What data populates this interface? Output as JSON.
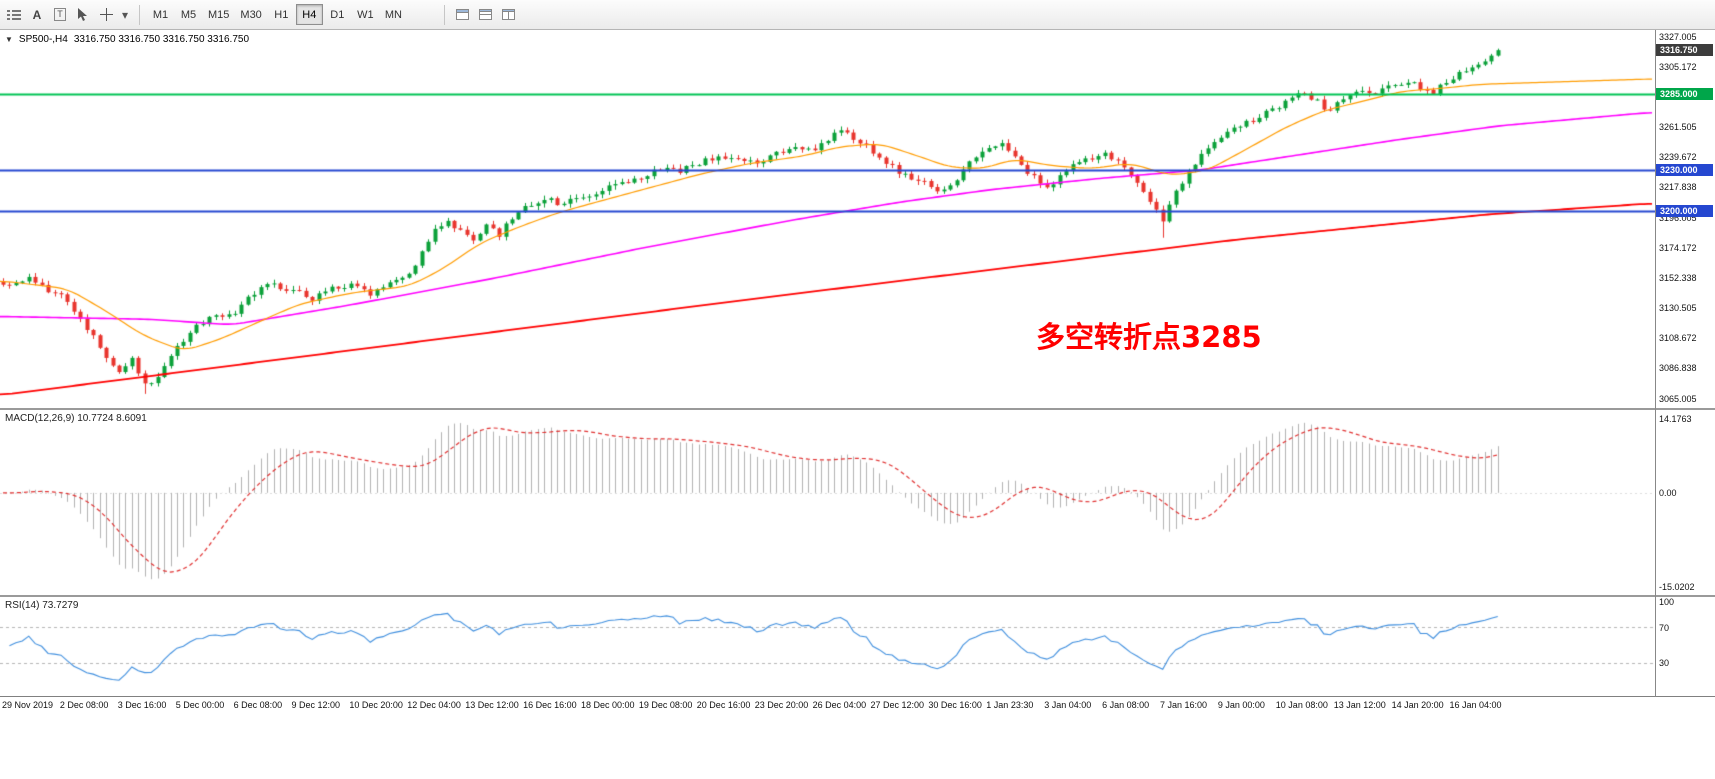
{
  "toolbar": {
    "timeframes": [
      "M1",
      "M5",
      "M15",
      "M30",
      "H1",
      "H4",
      "D1",
      "W1",
      "MN"
    ],
    "active_timeframe": "H4",
    "text_tool_label": "A",
    "frame_tool_label": "T",
    "dropdown_caret": "▾"
  },
  "chart": {
    "symbol_title": "SP500-,H4",
    "ohlc_text": "3316.750 3316.750 3316.750 3316.750",
    "annotation": {
      "text": "多空转折点3285",
      "color": "#ff0000"
    },
    "price_min": 3065.005,
    "price_max": 3327.005,
    "price_axis_ticks": [
      "3327.005",
      "3305.172",
      "3283.338",
      "3261.505",
      "3239.672",
      "3217.838",
      "3196.005",
      "3174.172",
      "3152.338",
      "3130.505",
      "3108.672",
      "3086.838",
      "3065.005"
    ],
    "price_tags": [
      {
        "label": "3316.750",
        "price": 3316.75,
        "bg": "#3c3c3c"
      },
      {
        "label": "3285.000",
        "price": 3285.0,
        "bg": "#00a64a"
      },
      {
        "label": "3230.000",
        "price": 3230.0,
        "bg": "#2547d0"
      },
      {
        "label": "3200.000",
        "price": 3200.0,
        "bg": "#2547d0"
      }
    ],
    "hlines": [
      {
        "price": 3285.0,
        "color": "#00c455",
        "width": 2
      },
      {
        "price": 3230.0,
        "color": "#2547d0",
        "width": 2
      },
      {
        "price": 3200.0,
        "color": "#2547d0",
        "width": 2
      }
    ],
    "colors": {
      "up": "#0ca13a",
      "down": "#e8352e",
      "ma_fast": "#ff9c00",
      "ma_mid": "#ff00ff",
      "ma_slow": "#ff0000"
    }
  },
  "chart_data": {
    "type": "candlestick",
    "symbol": "SP500-",
    "timeframe": "H4",
    "candle_count": 233,
    "ohlc_current": {
      "open": 3316.75,
      "high": 3316.75,
      "low": 3316.75,
      "close": 3316.75
    },
    "close_waypoints": [
      [
        0,
        3147
      ],
      [
        4,
        3152
      ],
      [
        9,
        3138
      ],
      [
        13,
        3116
      ],
      [
        16,
        3096
      ],
      [
        18,
        3083
      ],
      [
        20,
        3094
      ],
      [
        22,
        3074
      ],
      [
        24,
        3081
      ],
      [
        27,
        3103
      ],
      [
        30,
        3117
      ],
      [
        33,
        3124
      ],
      [
        36,
        3127
      ],
      [
        38,
        3140
      ],
      [
        42,
        3147
      ],
      [
        45,
        3143
      ],
      [
        48,
        3137
      ],
      [
        51,
        3144
      ],
      [
        54,
        3146
      ],
      [
        57,
        3140
      ],
      [
        60,
        3147
      ],
      [
        63,
        3154
      ],
      [
        65,
        3170
      ],
      [
        67,
        3186
      ],
      [
        69,
        3194
      ],
      [
        71,
        3186
      ],
      [
        73,
        3180
      ],
      [
        75,
        3189
      ],
      [
        77,
        3183
      ],
      [
        79,
        3196
      ],
      [
        81,
        3204
      ],
      [
        84,
        3209
      ],
      [
        87,
        3205
      ],
      [
        90,
        3211
      ],
      [
        93,
        3216
      ],
      [
        96,
        3221
      ],
      [
        99,
        3225
      ],
      [
        102,
        3231
      ],
      [
        105,
        3229
      ],
      [
        108,
        3235
      ],
      [
        111,
        3240
      ],
      [
        114,
        3237
      ],
      [
        117,
        3236
      ],
      [
        120,
        3242
      ],
      [
        123,
        3247
      ],
      [
        126,
        3245
      ],
      [
        128,
        3252
      ],
      [
        130,
        3259
      ],
      [
        132,
        3254
      ],
      [
        135,
        3243
      ],
      [
        138,
        3232
      ],
      [
        141,
        3224
      ],
      [
        144,
        3219
      ],
      [
        146,
        3214
      ],
      [
        148,
        3224
      ],
      [
        150,
        3237
      ],
      [
        153,
        3247
      ],
      [
        155,
        3251
      ],
      [
        157,
        3241
      ],
      [
        159,
        3228
      ],
      [
        162,
        3217
      ],
      [
        164,
        3226
      ],
      [
        167,
        3236
      ],
      [
        171,
        3241
      ],
      [
        173,
        3236
      ],
      [
        175,
        3227
      ],
      [
        177,
        3215
      ],
      [
        179,
        3203
      ],
      [
        180,
        3192
      ],
      [
        182,
        3214
      ],
      [
        184,
        3229
      ],
      [
        186,
        3243
      ],
      [
        189,
        3254
      ],
      [
        192,
        3262
      ],
      [
        195,
        3269
      ],
      [
        198,
        3275
      ],
      [
        200,
        3281
      ],
      [
        202,
        3286
      ],
      [
        204,
        3279
      ],
      [
        206,
        3271
      ],
      [
        207,
        3277
      ],
      [
        209,
        3284
      ],
      [
        211,
        3289
      ],
      [
        213,
        3286
      ],
      [
        216,
        3291
      ],
      [
        218,
        3295
      ],
      [
        220,
        3290
      ],
      [
        222,
        3287
      ],
      [
        224,
        3293
      ],
      [
        225,
        3296
      ],
      [
        227,
        3302
      ],
      [
        229,
        3308
      ],
      [
        231,
        3313
      ],
      [
        232,
        3316.75
      ]
    ],
    "special_lows": [
      [
        22,
        3068
      ],
      [
        180,
        3181
      ]
    ],
    "ma_fast_waypoints": [
      [
        0,
        3150
      ],
      [
        0.041,
        3144
      ],
      [
        0.064,
        3128
      ],
      [
        0.087,
        3110
      ],
      [
        0.111,
        3099
      ],
      [
        0.134,
        3108
      ],
      [
        0.158,
        3121
      ],
      [
        0.181,
        3133
      ],
      [
        0.212,
        3141
      ],
      [
        0.247,
        3146
      ],
      [
        0.267,
        3158
      ],
      [
        0.29,
        3177
      ],
      [
        0.314,
        3189
      ],
      [
        0.337,
        3199
      ],
      [
        0.361,
        3207
      ],
      [
        0.392,
        3217
      ],
      [
        0.423,
        3227
      ],
      [
        0.454,
        3235
      ],
      [
        0.485,
        3240
      ],
      [
        0.508,
        3247
      ],
      [
        0.532,
        3249
      ],
      [
        0.555,
        3240
      ],
      [
        0.574,
        3232
      ],
      [
        0.594,
        3231
      ],
      [
        0.613,
        3238
      ],
      [
        0.636,
        3233
      ],
      [
        0.66,
        3231
      ],
      [
        0.683,
        3235
      ],
      [
        0.707,
        3226
      ],
      [
        0.73,
        3230
      ],
      [
        0.753,
        3245
      ],
      [
        0.777,
        3261
      ],
      [
        0.8,
        3273
      ],
      [
        0.824,
        3280
      ],
      [
        0.847,
        3287
      ],
      [
        0.87,
        3289
      ],
      [
        0.894,
        3292
      ],
      [
        1,
        3296
      ]
    ],
    "ma_mid_waypoints": [
      [
        0,
        3124
      ],
      [
        0.09,
        3122
      ],
      [
        0.14,
        3118
      ],
      [
        0.21,
        3132
      ],
      [
        0.3,
        3152
      ],
      [
        0.39,
        3174
      ],
      [
        0.48,
        3194
      ],
      [
        0.545,
        3207
      ],
      [
        0.6,
        3216
      ],
      [
        0.665,
        3224
      ],
      [
        0.725,
        3230
      ],
      [
        0.785,
        3241
      ],
      [
        0.845,
        3252
      ],
      [
        0.906,
        3262
      ],
      [
        1,
        3272
      ]
    ],
    "ma_slow_waypoints": [
      [
        0,
        3067
      ],
      [
        0.15,
        3090
      ],
      [
        0.3,
        3113
      ],
      [
        0.45,
        3136
      ],
      [
        0.6,
        3158
      ],
      [
        0.75,
        3180
      ],
      [
        0.9,
        3198
      ],
      [
        1,
        3206
      ]
    ],
    "indicators": [
      {
        "name": "MACD",
        "params": [
          12,
          26,
          9
        ],
        "current_values": [
          10.7724,
          8.6091
        ]
      },
      {
        "name": "RSI",
        "params": [
          14
        ],
        "current_values": [
          73.7279
        ]
      }
    ]
  },
  "macd": {
    "label": "MACD(12,26,9) 10.7724 8.6091",
    "axis": [
      "14.1763",
      "0.00",
      "-15.0202"
    ]
  },
  "rsi": {
    "label": "RSI(14) 73.7279",
    "axis": [
      "100",
      "70",
      "30"
    ],
    "levels": [
      70,
      30
    ]
  },
  "time_axis": {
    "labels": [
      "29 Nov 2019",
      "2 Dec 08:00",
      "3 Dec 16:00",
      "5 Dec 00:00",
      "6 Dec 08:00",
      "9 Dec 12:00",
      "10 Dec 20:00",
      "12 Dec 04:00",
      "13 Dec 12:00",
      "16 Dec 16:00",
      "18 Dec 00:00",
      "19 Dec 08:00",
      "20 Dec 16:00",
      "23 Dec 20:00",
      "26 Dec 04:00",
      "27 Dec 12:00",
      "30 Dec 16:00",
      "1 Jan 23:30",
      "3 Jan 04:00",
      "6 Jan 08:00",
      "7 Jan 16:00",
      "9 Jan 00:00",
      "10 Jan 08:00",
      "13 Jan 12:00",
      "14 Jan 20:00",
      "16 Jan 04:00"
    ]
  }
}
